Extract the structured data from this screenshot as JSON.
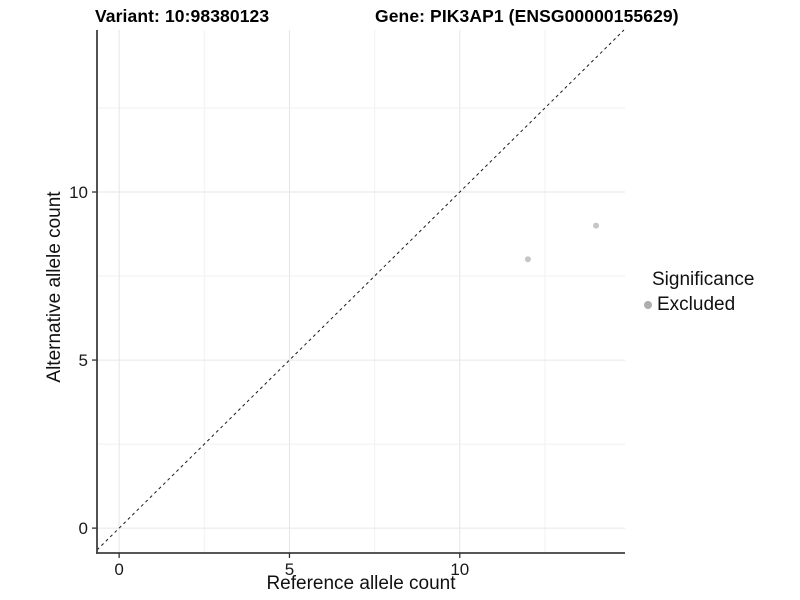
{
  "chart_data": {
    "type": "scatter",
    "title_left": "Variant: 10:98380123",
    "title_right": "Gene: PIK3AP1 (ENSG00000155629)",
    "xlabel": "Reference allele count",
    "ylabel": "Alternative allele count",
    "xlim": [
      -0.65,
      14.85
    ],
    "ylim": [
      -0.74,
      14.82
    ],
    "x_ticks": [
      0,
      5,
      10
    ],
    "y_ticks": [
      0,
      5,
      10
    ],
    "x_minor_ticks": [
      2.5,
      7.5,
      12.5
    ],
    "y_minor_ticks": [
      2.5,
      7.5,
      12.5
    ],
    "grid": "major+minor",
    "legend_position": "right",
    "legend_title": "Significance",
    "series": [
      {
        "name": "Excluded",
        "color": "#c6c6c6",
        "points": [
          [
            12,
            8
          ],
          [
            14,
            9
          ]
        ]
      }
    ],
    "reference_line": {
      "kind": "identity y=x",
      "style": "dashed",
      "color": "#1a1a1a"
    }
  },
  "colors": {
    "background": "#ffffff",
    "grid_major": "#e6e6e6",
    "grid_minor": "#f1f1f1",
    "axis_line": "#3f3f3f",
    "tick_mark": "#333333",
    "legend_key": "#aeaeae"
  }
}
